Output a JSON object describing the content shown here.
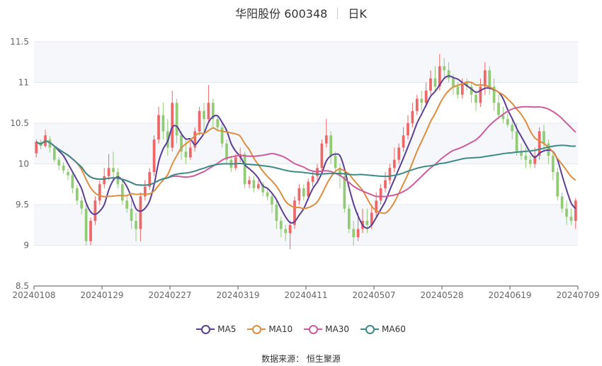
{
  "header": {
    "stock_name": "华阳股份 600348",
    "period": "日K"
  },
  "source": {
    "label": "数据来源：",
    "value": "恒生聚源"
  },
  "chart_data": {
    "type": "candlestick",
    "x_tick_labels": [
      "20240108",
      "20240129",
      "20240227",
      "20240319",
      "20240411",
      "20240507",
      "20240528",
      "20240619",
      "20240709"
    ],
    "y_ticks": [
      8.5,
      9,
      9.5,
      10,
      10.5,
      11,
      11.5
    ],
    "y_tick_labels": [
      "8.5",
      "9",
      "9.5",
      "10",
      "10.5",
      "11",
      "11.5"
    ],
    "ylim": [
      8.5,
      11.5
    ],
    "num_bars": 120,
    "grid": true,
    "legend_position": "bottom",
    "up_color": "#ee6666",
    "down_color": "#91cc75",
    "candles": [
      [
        10.13,
        10.27,
        10.08,
        10.3
      ],
      [
        10.27,
        10.22,
        10.18,
        10.3
      ],
      [
        10.22,
        10.35,
        10.2,
        10.42
      ],
      [
        10.3,
        10.2,
        10.14,
        10.34
      ],
      [
        10.2,
        10.05,
        10.02,
        10.22
      ],
      [
        10.05,
        9.98,
        9.92,
        10.08
      ],
      [
        9.98,
        9.92,
        9.88,
        10.02
      ],
      [
        9.9,
        9.86,
        9.8,
        9.94
      ],
      [
        9.86,
        9.7,
        9.64,
        9.9
      ],
      [
        9.7,
        9.55,
        9.5,
        9.74
      ],
      [
        9.55,
        9.45,
        9.38,
        9.6
      ],
      [
        9.45,
        9.05,
        9.0,
        9.5
      ],
      [
        9.05,
        9.3,
        9.0,
        9.34
      ],
      [
        9.3,
        9.55,
        9.25,
        9.6
      ],
      [
        9.55,
        9.75,
        9.5,
        9.8
      ],
      [
        9.75,
        9.85,
        9.7,
        9.95
      ],
      [
        9.85,
        9.95,
        9.8,
        10.12
      ],
      [
        9.95,
        9.9,
        9.8,
        10.15
      ],
      [
        9.9,
        9.75,
        9.7,
        9.95
      ],
      [
        9.75,
        9.55,
        9.5,
        9.8
      ],
      [
        9.55,
        9.45,
        9.4,
        9.62
      ],
      [
        9.45,
        9.3,
        9.2,
        9.55
      ],
      [
        9.3,
        9.2,
        9.05,
        9.4
      ],
      [
        9.2,
        9.6,
        9.05,
        9.65
      ],
      [
        9.6,
        9.72,
        9.55,
        9.8
      ],
      [
        9.72,
        9.9,
        9.68,
        9.95
      ],
      [
        9.9,
        10.3,
        9.85,
        10.35
      ],
      [
        10.3,
        10.6,
        10.25,
        10.7
      ],
      [
        10.6,
        10.4,
        10.3,
        10.75
      ],
      [
        10.4,
        10.2,
        10.1,
        10.55
      ],
      [
        10.2,
        10.75,
        10.15,
        10.9
      ],
      [
        10.75,
        10.35,
        10.25,
        10.8
      ],
      [
        10.35,
        10.15,
        10.05,
        10.4
      ],
      [
        10.15,
        10.08,
        10.0,
        10.3
      ],
      [
        10.08,
        10.2,
        10.05,
        10.3
      ],
      [
        10.2,
        10.4,
        10.15,
        10.45
      ],
      [
        10.4,
        10.65,
        10.35,
        10.7
      ],
      [
        10.65,
        10.55,
        10.4,
        10.75
      ],
      [
        10.55,
        10.75,
        10.5,
        10.97
      ],
      [
        10.75,
        10.55,
        10.45,
        10.8
      ],
      [
        10.55,
        10.45,
        10.4,
        10.6
      ],
      [
        10.45,
        10.25,
        10.2,
        10.5
      ],
      [
        10.25,
        10.05,
        10.0,
        10.3
      ],
      [
        10.05,
        9.95,
        9.9,
        10.1
      ],
      [
        9.95,
        10.08,
        9.92,
        10.12
      ],
      [
        10.08,
        10.12,
        10.02,
        10.2
      ],
      [
        10.12,
        9.75,
        9.7,
        10.15
      ],
      [
        9.75,
        9.8,
        9.7,
        9.85
      ],
      [
        9.8,
        9.7,
        9.65,
        9.85
      ],
      [
        9.7,
        9.75,
        9.68,
        9.8
      ],
      [
        9.75,
        9.65,
        9.6,
        9.78
      ],
      [
        9.65,
        9.6,
        9.55,
        9.7
      ],
      [
        9.6,
        9.5,
        9.4,
        9.65
      ],
      [
        9.5,
        9.3,
        9.2,
        9.55
      ],
      [
        9.3,
        9.2,
        9.1,
        9.35
      ],
      [
        9.2,
        9.15,
        9.05,
        9.25
      ],
      [
        9.15,
        9.25,
        8.95,
        9.3
      ],
      [
        9.25,
        9.55,
        9.2,
        9.6
      ],
      [
        9.55,
        9.7,
        9.5,
        9.75
      ],
      [
        9.7,
        9.6,
        9.55,
        9.75
      ],
      [
        9.6,
        9.78,
        9.55,
        9.82
      ],
      [
        9.78,
        9.85,
        9.72,
        9.9
      ],
      [
        9.85,
        9.95,
        9.8,
        10.0
      ],
      [
        9.95,
        10.25,
        9.9,
        10.3
      ],
      [
        10.25,
        10.35,
        10.2,
        10.55
      ],
      [
        10.35,
        10.1,
        10.0,
        10.4
      ],
      [
        10.1,
        9.95,
        9.9,
        10.15
      ],
      [
        9.95,
        9.85,
        9.7,
        10.0
      ],
      [
        9.85,
        9.45,
        9.4,
        9.9
      ],
      [
        9.45,
        9.2,
        9.15,
        9.5
      ],
      [
        9.2,
        9.1,
        9.0,
        9.3
      ],
      [
        9.1,
        9.2,
        9.05,
        9.4
      ],
      [
        9.2,
        9.3,
        9.15,
        9.45
      ],
      [
        9.3,
        9.25,
        9.15,
        9.45
      ],
      [
        9.25,
        9.4,
        9.2,
        9.5
      ],
      [
        9.4,
        9.55,
        9.35,
        9.65
      ],
      [
        9.55,
        9.7,
        9.5,
        9.75
      ],
      [
        9.7,
        9.8,
        9.65,
        9.9
      ],
      [
        9.8,
        9.95,
        9.75,
        10.0
      ],
      [
        9.95,
        10.05,
        9.9,
        10.2
      ],
      [
        10.05,
        10.2,
        10.0,
        10.25
      ],
      [
        10.2,
        10.35,
        10.15,
        10.45
      ],
      [
        10.35,
        10.5,
        10.3,
        10.6
      ],
      [
        10.5,
        10.65,
        10.45,
        10.75
      ],
      [
        10.65,
        10.8,
        10.6,
        10.85
      ],
      [
        10.8,
        10.75,
        10.65,
        10.9
      ],
      [
        10.75,
        10.9,
        10.7,
        11.0
      ],
      [
        10.9,
        11.05,
        10.85,
        11.15
      ],
      [
        11.05,
        10.95,
        10.9,
        11.2
      ],
      [
        10.95,
        11.2,
        10.9,
        11.35
      ],
      [
        11.2,
        11.15,
        11.05,
        11.3
      ],
      [
        11.15,
        11.05,
        11.0,
        11.25
      ],
      [
        11.05,
        10.95,
        10.85,
        11.1
      ],
      [
        10.95,
        10.85,
        10.8,
        11.0
      ],
      [
        10.85,
        11.0,
        10.8,
        11.05
      ],
      [
        11.0,
        10.95,
        10.9,
        11.05
      ],
      [
        10.95,
        10.85,
        10.75,
        11.0
      ],
      [
        10.85,
        10.75,
        10.65,
        10.9
      ],
      [
        10.75,
        10.95,
        10.7,
        11.05
      ],
      [
        10.95,
        11.15,
        10.85,
        11.25
      ],
      [
        11.15,
        10.95,
        10.85,
        11.2
      ],
      [
        10.95,
        10.75,
        10.65,
        11.05
      ],
      [
        10.75,
        10.6,
        10.55,
        10.85
      ],
      [
        10.6,
        10.55,
        10.5,
        10.7
      ],
      [
        10.55,
        10.48,
        10.45,
        10.62
      ],
      [
        10.48,
        10.4,
        10.3,
        10.55
      ],
      [
        10.4,
        10.15,
        10.1,
        10.5
      ],
      [
        10.15,
        10.1,
        10.05,
        10.25
      ],
      [
        10.1,
        10.05,
        9.95,
        10.2
      ],
      [
        10.05,
        10.0,
        9.95,
        10.1
      ],
      [
        10.0,
        10.1,
        9.95,
        10.2
      ],
      [
        10.1,
        10.4,
        10.05,
        10.45
      ],
      [
        10.4,
        10.25,
        10.15,
        10.48
      ],
      [
        10.25,
        10.1,
        10.0,
        10.3
      ],
      [
        10.1,
        9.9,
        9.8,
        10.15
      ],
      [
        9.9,
        9.6,
        9.55,
        9.95
      ],
      [
        9.6,
        9.45,
        9.4,
        9.65
      ],
      [
        9.45,
        9.35,
        9.25,
        9.55
      ],
      [
        9.35,
        9.3,
        9.25,
        9.45
      ],
      [
        9.3,
        9.55,
        9.2,
        9.58
      ]
    ],
    "series": [
      {
        "name": "MA5",
        "color": "#5b3f96"
      },
      {
        "name": "MA10",
        "color": "#df8d3d"
      },
      {
        "name": "MA30",
        "color": "#cf5a9e"
      },
      {
        "name": "MA60",
        "color": "#3d8b89"
      }
    ]
  }
}
